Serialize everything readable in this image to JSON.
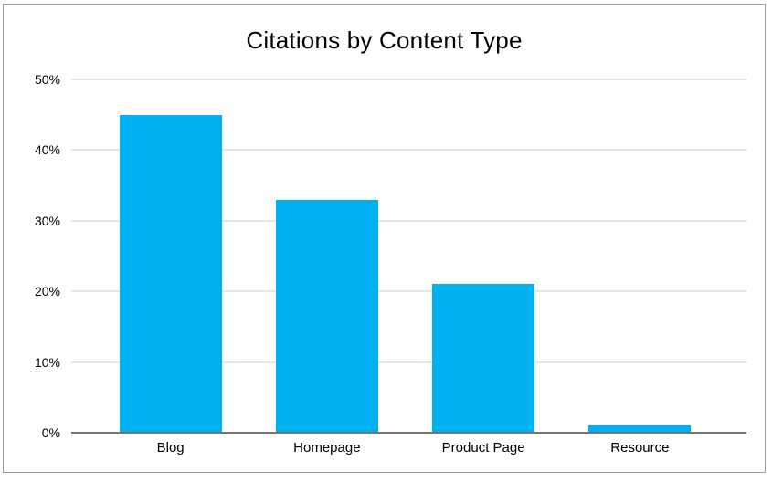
{
  "page": {
    "background": "#ffffff",
    "frame_border_color": "#9e9e9e"
  },
  "chart_data": {
    "type": "bar",
    "title": "Citations by Content Type",
    "categories": [
      "Blog",
      "Homepage",
      "Product Page",
      "Resource"
    ],
    "values": [
      45,
      33,
      21,
      1
    ],
    "unit": "%",
    "xlabel": "",
    "ylabel": "",
    "ylim": [
      0,
      50
    ],
    "ytick_values": [
      0,
      10,
      20,
      30,
      40,
      50
    ],
    "ytick_labels": [
      "0%",
      "10%",
      "20%",
      "30%",
      "40%",
      "50%"
    ],
    "grid": true,
    "legend_position": "none",
    "bar_color": "#00b0f0",
    "gridline_color": "#e6e6e6",
    "axis_line_color": "#757575",
    "title_color": "#000000",
    "tick_label_color": "#000000"
  }
}
